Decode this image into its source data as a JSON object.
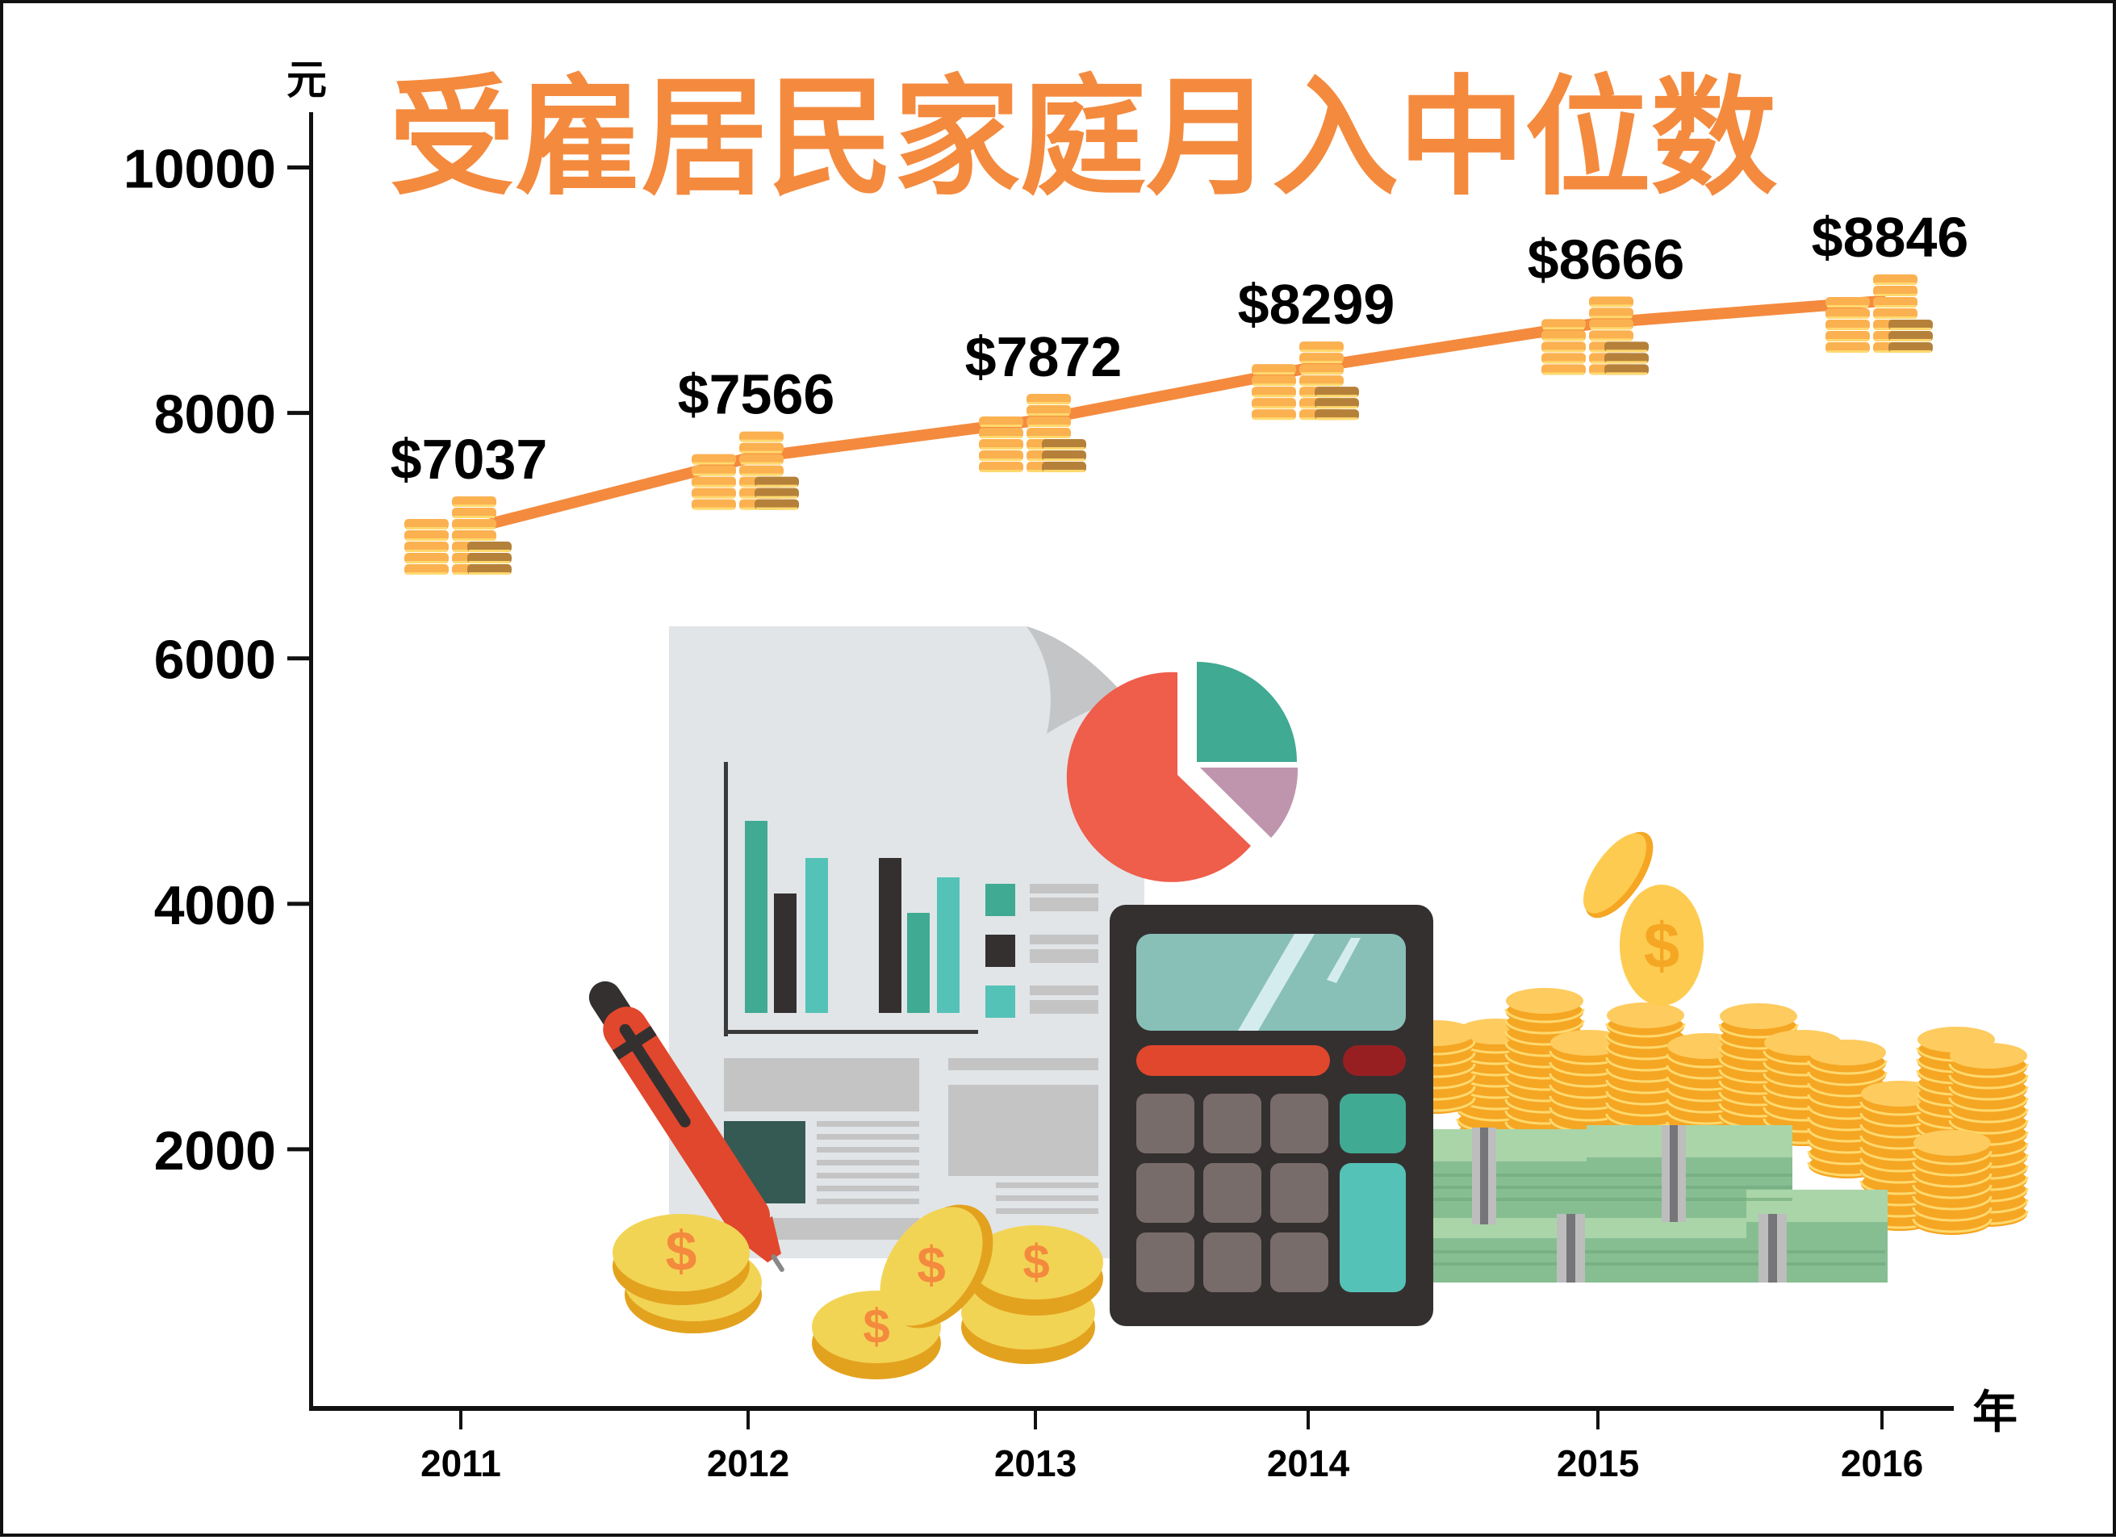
{
  "title": "受雇居民家庭月入中位数",
  "y_unit": "元",
  "x_unit": "年",
  "colors": {
    "title": "#F48A3E",
    "line": "#F48A3E",
    "axis": "#111111",
    "coin_light": "#FBB150",
    "coin_stripe": "#FFD96E",
    "coin_dark": "#B5813A"
  },
  "y_ticks": [
    "10000",
    "8000",
    "6000",
    "4000",
    "2000"
  ],
  "x_ticks": [
    "2011",
    "2012",
    "2013",
    "2014",
    "2015",
    "2016"
  ],
  "value_labels": [
    "$7037",
    "$7566",
    "$7872",
    "$8299",
    "$8666",
    "$8846"
  ],
  "chart_data": {
    "type": "line",
    "title": "受雇居民家庭月入中位数",
    "xlabel": "年",
    "ylabel": "元",
    "categories": [
      "2011",
      "2012",
      "2013",
      "2014",
      "2015",
      "2016"
    ],
    "series": [
      {
        "name": "受雇居民家庭月入中位数",
        "values": [
          7037,
          7566,
          7872,
          8299,
          8666,
          8846
        ]
      }
    ],
    "data_labels": [
      "$7037",
      "$7566",
      "$7872",
      "$8299",
      "$8666",
      "$8846"
    ],
    "yticks": [
      2000,
      4000,
      6000,
      8000,
      10000
    ],
    "ylim": [
      0,
      10500
    ],
    "grid": false,
    "legend": "none",
    "annotations": [
      "coin-stack markers at each data point",
      "decorative illustration: report document, pie chart, pen, calculator, coins and banknotes"
    ]
  }
}
